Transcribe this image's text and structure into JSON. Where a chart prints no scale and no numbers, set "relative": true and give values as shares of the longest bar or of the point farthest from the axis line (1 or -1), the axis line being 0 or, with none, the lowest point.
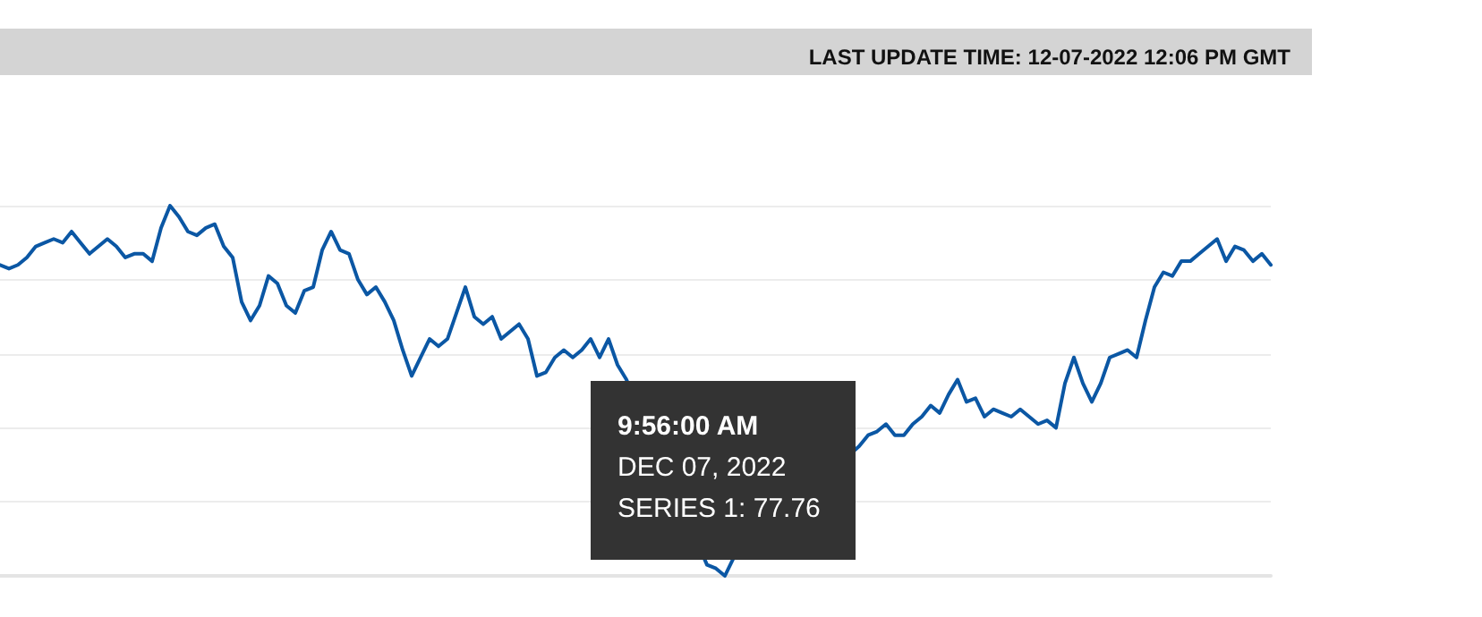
{
  "chart_data": {
    "type": "line",
    "title": "LAST UPDATE TIME: 12-07-2022 12:06 PM GMT",
    "annotations": [
      "9:56:00 AM",
      "DEC 07, 2022",
      "SERIES 1: 77.76"
    ],
    "relative": true,
    "grid": "y",
    "tick_labels": false,
    "line_style": "solid",
    "categories": [
      null,
      null,
      null,
      null,
      null,
      null,
      null,
      null,
      null,
      null,
      null,
      null,
      null,
      null,
      null,
      null,
      null,
      null,
      null,
      null,
      null,
      null,
      null,
      null,
      null,
      null,
      null,
      null,
      null,
      null,
      null,
      null,
      null,
      null,
      null,
      null,
      null,
      null,
      null,
      null,
      null,
      null,
      null,
      null,
      null,
      null,
      null,
      null,
      null,
      null,
      null,
      null,
      null,
      null,
      null,
      null,
      null,
      null,
      null,
      null,
      null,
      null,
      null,
      null,
      null,
      null,
      null,
      null,
      null,
      null,
      null,
      null,
      null,
      null,
      null,
      null,
      null,
      null,
      null,
      null,
      null,
      null,
      null,
      null,
      null,
      null,
      null,
      null,
      null,
      null,
      null,
      null,
      null,
      null,
      null,
      null,
      null,
      null,
      null,
      null,
      null,
      null,
      null,
      null,
      null,
      null,
      null,
      null,
      null,
      null,
      null,
      null,
      null,
      null,
      null,
      null,
      null,
      null,
      null,
      null,
      null,
      null,
      null,
      null,
      null,
      null,
      null,
      null,
      null,
      null,
      null,
      null,
      null,
      null,
      null,
      null,
      null,
      null,
      null,
      null,
      null,
      null,
      null
    ],
    "series": [
      {
        "color": "#0b57a4",
        "values": [
          0.84,
          0.83,
          0.84,
          0.86,
          0.89,
          0.9,
          0.91,
          0.9,
          0.93,
          0.9,
          0.87,
          0.89,
          0.91,
          0.89,
          0.86,
          0.87,
          0.87,
          0.85,
          0.94,
          1,
          0.97,
          0.93,
          0.92,
          0.94,
          0.95,
          0.89,
          0.86,
          0.74,
          0.69,
          0.73,
          0.81,
          0.79,
          0.73,
          0.71,
          0.77,
          0.78,
          0.88,
          0.93,
          0.88,
          0.87,
          0.8,
          0.76,
          0.78,
          0.74,
          0.69,
          0.61,
          0.54,
          0.59,
          0.64,
          0.62,
          0.64,
          0.71,
          0.78,
          0.7,
          0.68,
          0.7,
          0.64,
          0.66,
          0.68,
          0.64,
          0.54,
          0.55,
          0.59,
          0.61,
          0.59,
          0.61,
          0.64,
          0.59,
          0.64,
          0.57,
          0.53,
          null,
          null,
          null,
          null,
          null,
          null,
          null,
          null,
          0.03,
          0.02,
          0,
          0.05,
          null,
          null,
          null,
          null,
          null,
          null,
          null,
          null,
          null,
          null,
          null,
          null,
          null,
          0.35,
          0.38,
          0.39,
          0.41,
          0.38,
          0.38,
          0.41,
          0.43,
          0.46,
          0.44,
          0.49,
          0.53,
          0.47,
          0.48,
          0.43,
          0.45,
          0.44,
          0.43,
          0.45,
          0.43,
          0.41,
          0.42,
          0.4,
          0.52,
          0.59,
          0.52,
          0.47,
          0.52,
          0.59,
          0.6,
          0.61,
          0.59,
          0.69,
          0.78,
          0.82,
          0.81,
          0.85,
          0.85,
          0.87,
          0.89,
          0.91,
          0.85,
          0.89,
          0.88,
          0.85,
          0.87,
          0.84
        ]
      }
    ]
  }
}
